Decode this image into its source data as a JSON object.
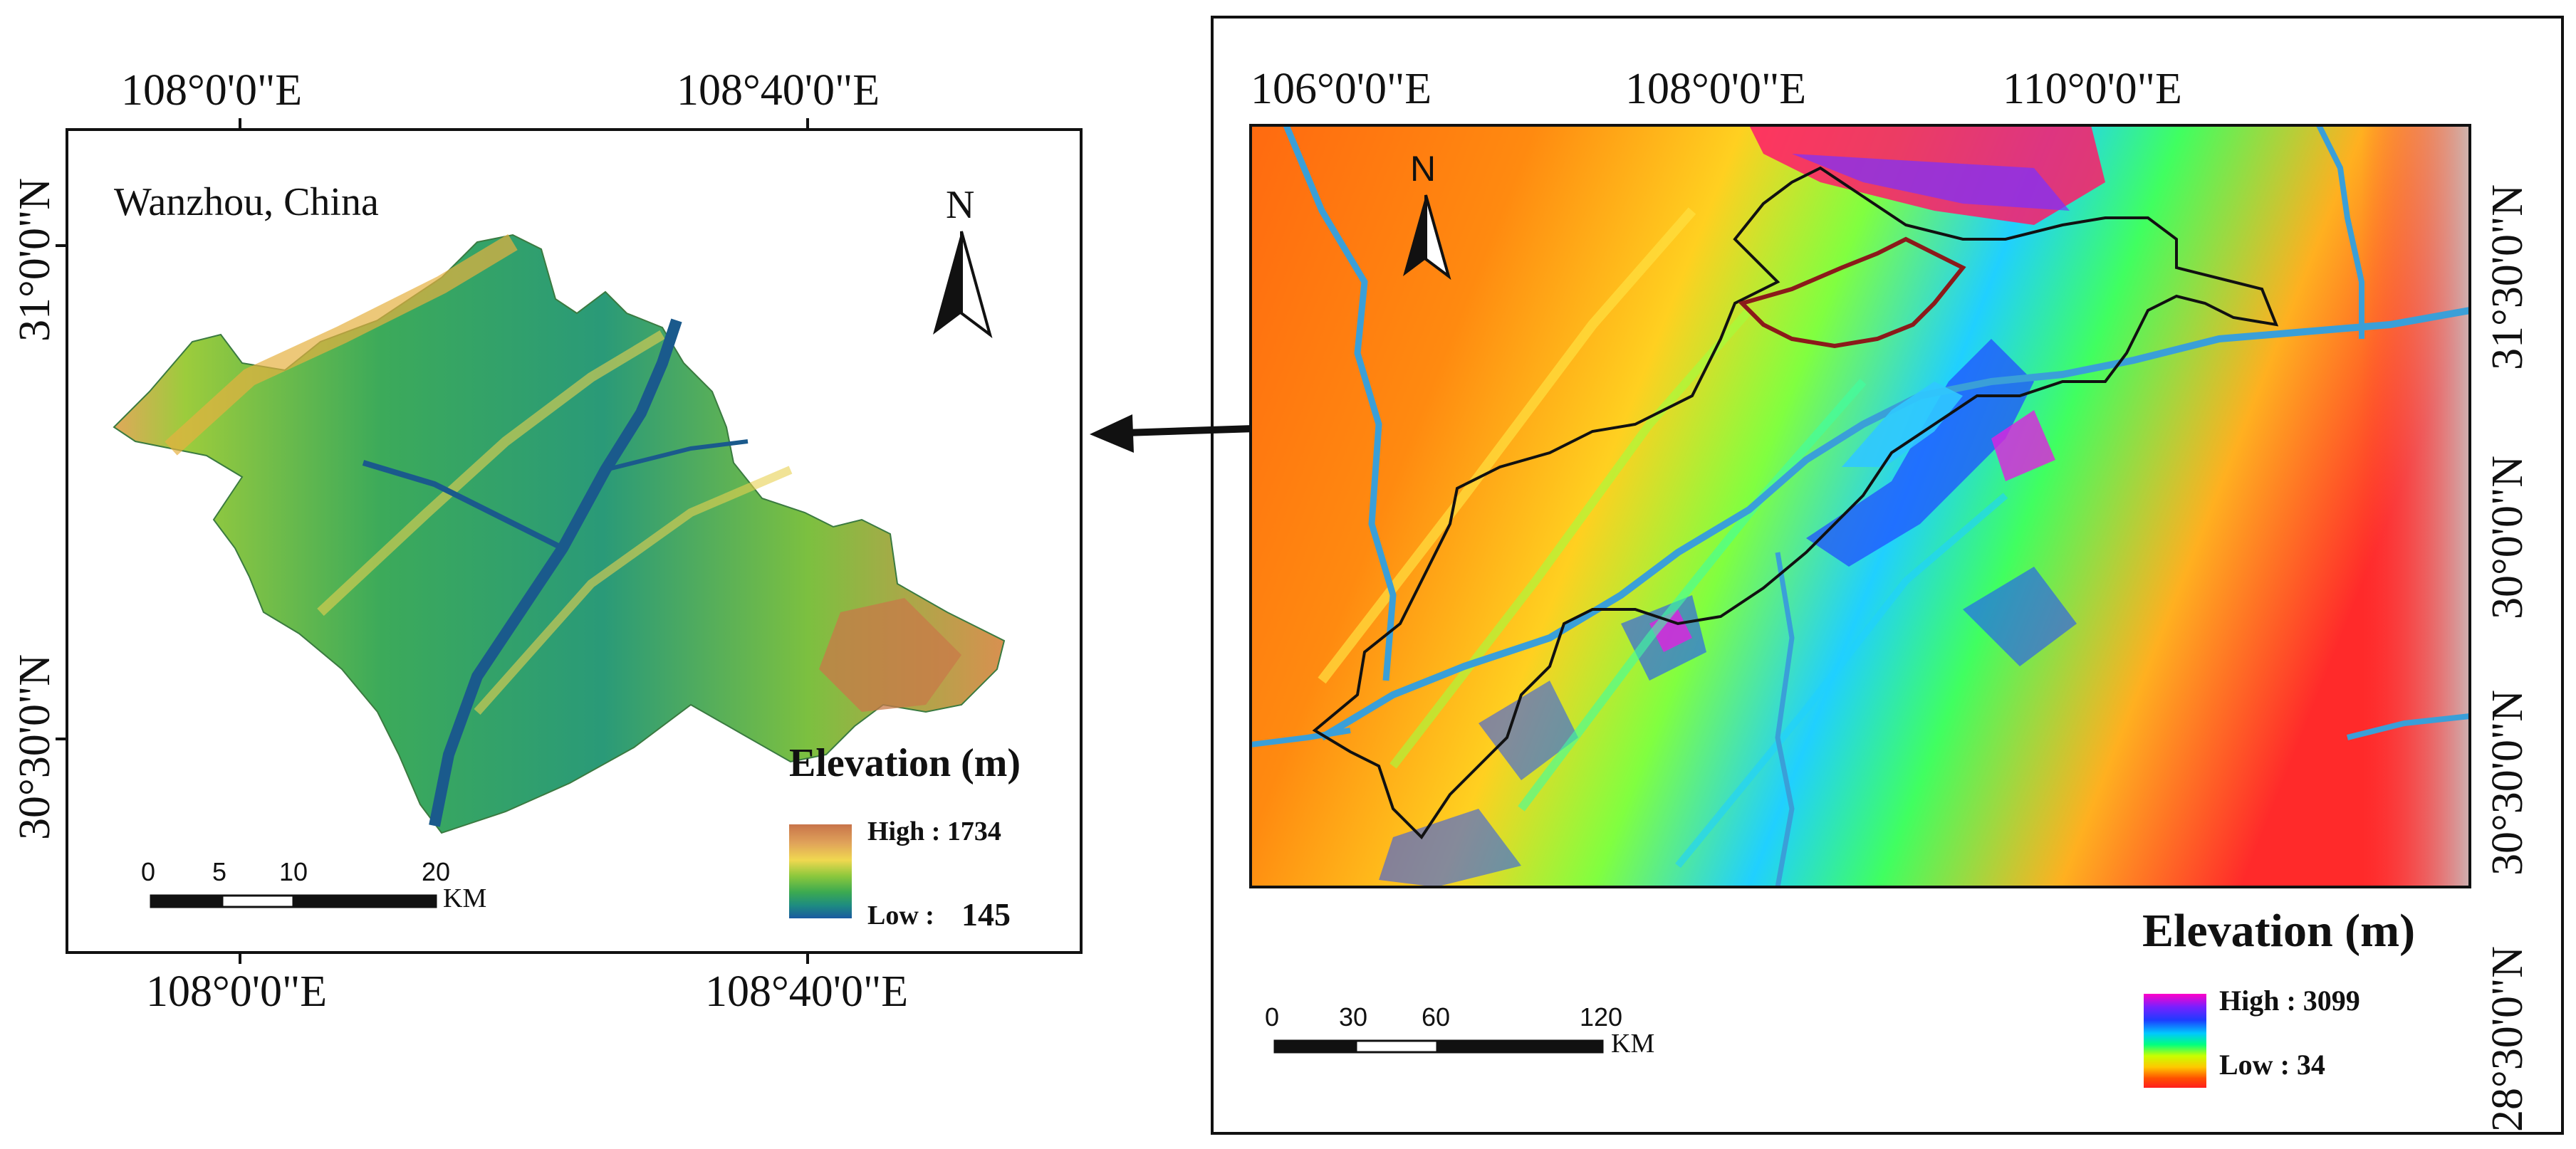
{
  "left_map": {
    "title": "Wanzhou, China",
    "top_longitudes": [
      "108°0'0\"E",
      "108°40'0\"E"
    ],
    "bottom_longitudes": [
      "108°0'0\"E",
      "108°40'0\"E"
    ],
    "left_latitudes": [
      "31°0'0\"N",
      "30°30'0\"N"
    ],
    "north_label": "N",
    "legend": {
      "title": "Elevation (m)",
      "high_label": "High : 1734",
      "low_label": "Low : ",
      "low_value": "145",
      "colors": [
        "#c8744a",
        "#e0a35a",
        "#f0d850",
        "#8cc83c",
        "#3caa50",
        "#1e8c80",
        "#1a5aa0"
      ]
    },
    "scalebar": {
      "ticks": [
        "0",
        "5",
        "10",
        "20"
      ],
      "unit": "KM"
    }
  },
  "right_map": {
    "top_longitudes": [
      "106°0'0\"E",
      "108°0'0\"E",
      "110°0'0\"E"
    ],
    "right_latitudes": [
      "31°30'0\"N",
      "30°0'0\"N",
      "30°30'0\"N",
      "28°30'0\"N"
    ],
    "north_label": "N",
    "legend": {
      "title": "Elevation (m)",
      "high_label": "High : 3099",
      "low_label": "Low : 34",
      "colors": [
        "#ff00c8",
        "#7820ff",
        "#1e3cff",
        "#00c8ff",
        "#00ff80",
        "#c8ff00",
        "#ffc800",
        "#ff5000",
        "#ff1e1e"
      ]
    },
    "scalebar": {
      "ticks": [
        "0",
        "30",
        "60",
        "120"
      ],
      "unit": "KM"
    }
  },
  "colors": {
    "river": "#3a9fd8",
    "region_outline_inner": "#8b1a1a",
    "region_outline": "#111111"
  }
}
